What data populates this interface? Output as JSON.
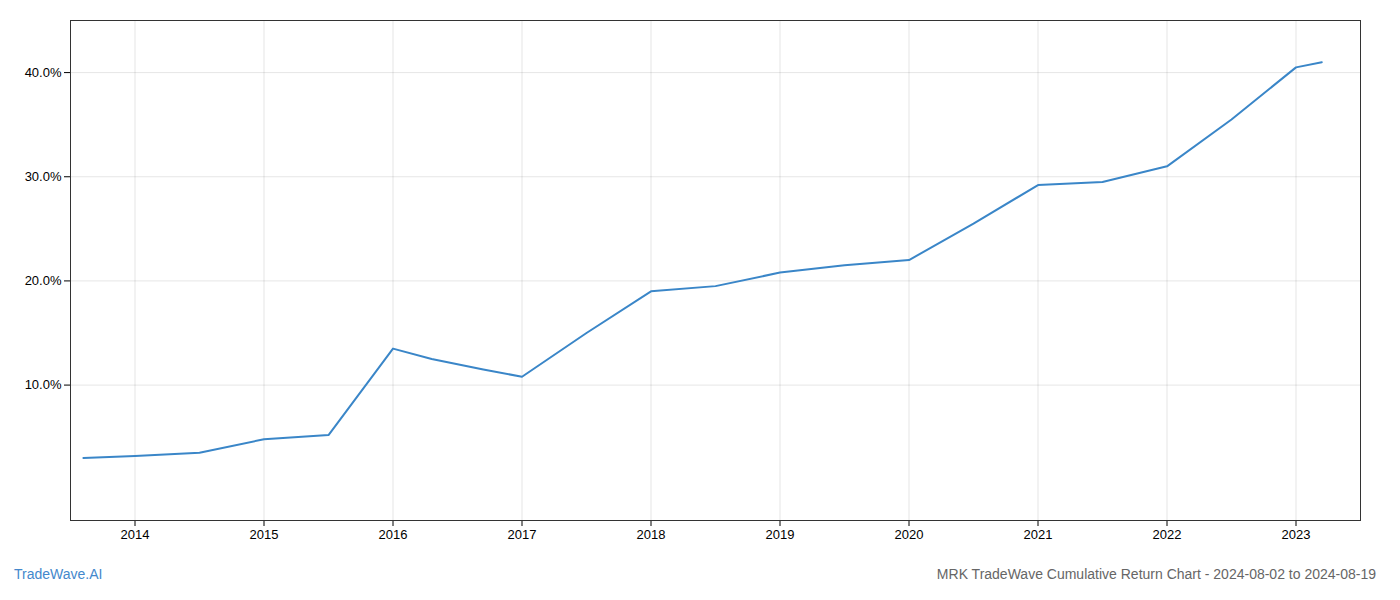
{
  "chart_data": {
    "type": "line",
    "title": "MRK TradeWave Cumulative Return Chart - 2024-08-02 to 2024-08-19",
    "annotations": [
      "TradeWave.AI"
    ],
    "x": [
      2013.6,
      2014.0,
      2014.5,
      2015.0,
      2015.5,
      2016.0,
      2016.3,
      2016.7,
      2017.0,
      2017.5,
      2018.0,
      2018.5,
      2019.0,
      2019.5,
      2020.0,
      2020.5,
      2021.0,
      2021.5,
      2022.0,
      2022.5,
      2023.0,
      2023.2
    ],
    "values": [
      3.0,
      3.2,
      3.5,
      4.8,
      5.2,
      13.5,
      12.5,
      11.5,
      10.8,
      15.0,
      19.0,
      19.5,
      20.8,
      21.5,
      22.0,
      25.5,
      29.2,
      29.5,
      31.0,
      35.5,
      40.5,
      41.0
    ],
    "color": "#3a86c8",
    "xlim": [
      2013.5,
      2023.5
    ],
    "ylim": [
      -3,
      45
    ],
    "xticks": [
      2014,
      2015,
      2016,
      2017,
      2018,
      2019,
      2020,
      2021,
      2022,
      2023
    ],
    "yticks": [
      {
        "value": 10.0,
        "label": "10.0%"
      },
      {
        "value": 20.0,
        "label": "20.0%"
      },
      {
        "value": 30.0,
        "label": "30.0%"
      },
      {
        "value": 40.0,
        "label": "40.0%"
      }
    ],
    "grid": true
  }
}
